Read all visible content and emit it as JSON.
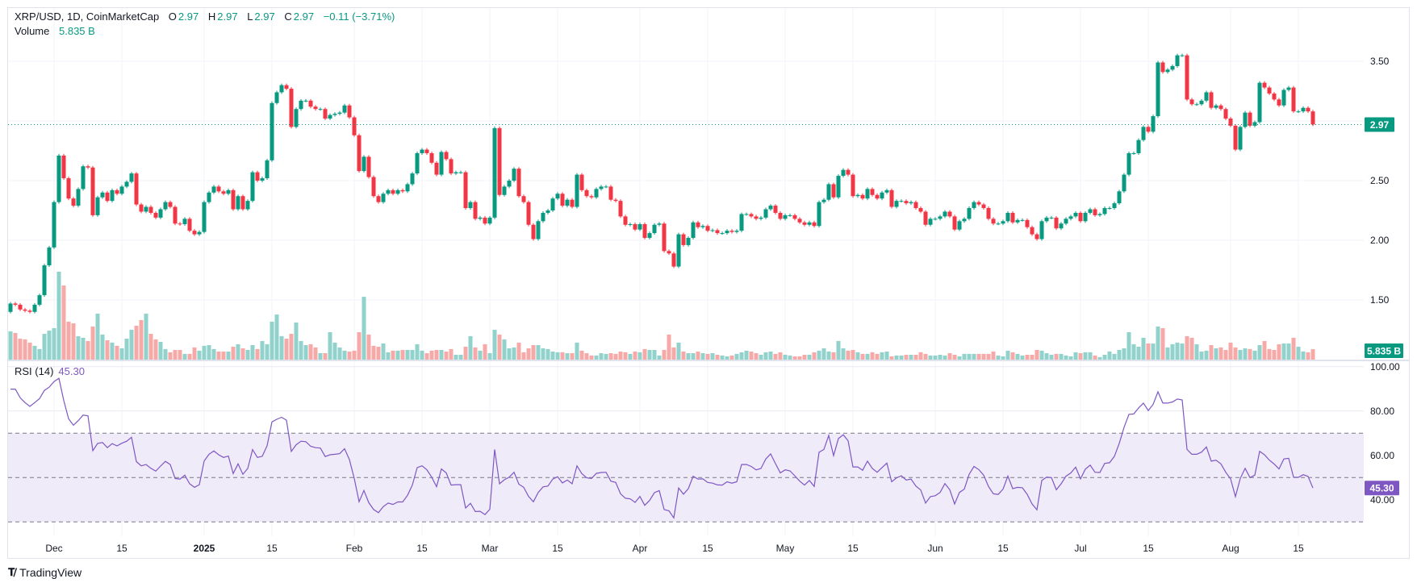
{
  "header": {
    "symbol": "XRP/USD, 1D, CoinMarketCap",
    "open_label": "O",
    "open": "2.97",
    "high_label": "H",
    "high": "2.97",
    "low_label": "L",
    "low": "2.97",
    "close_label": "C",
    "close": "2.97",
    "change": "−0.11 (−3.71%)",
    "volume_label": "Volume",
    "volume": "5.835 B"
  },
  "rsi_legend": {
    "label": "RSI (14)",
    "value": "45.30"
  },
  "price_badge": "2.97",
  "volume_badge": "5.835 B",
  "rsi_badge": "45.30",
  "brand": "TradingView",
  "colors": {
    "up": "#089981",
    "down": "#f23645",
    "volume_up": "#92d2cc",
    "volume_down": "#f7a9a7",
    "rsi": "#7e57c2",
    "rsi_band": "#f0ebf9"
  },
  "chart_data": {
    "type": "candlestick",
    "timeframe": "1D",
    "price_axis": {
      "ticks": [
        "3.50",
        "3.00",
        "2.50",
        "2.00",
        "1.50"
      ],
      "tick_values": [
        3.5,
        3.0,
        2.5,
        2.0,
        1.5
      ],
      "range": [
        1.2,
        3.9
      ]
    },
    "time_axis": [
      {
        "label": "Dec",
        "date": "2024-12-01"
      },
      {
        "label": "15",
        "date": "2024-12-15"
      },
      {
        "label": "2025",
        "date": "2025-01-01",
        "bold": true
      },
      {
        "label": "15",
        "date": "2025-01-15"
      },
      {
        "label": "Feb",
        "date": "2025-02-01"
      },
      {
        "label": "15",
        "date": "2025-02-15"
      },
      {
        "label": "Mar",
        "date": "2025-03-01"
      },
      {
        "label": "15",
        "date": "2025-03-15"
      },
      {
        "label": "Apr",
        "date": "2025-04-01"
      },
      {
        "label": "15",
        "date": "2025-04-15"
      },
      {
        "label": "May",
        "date": "2025-05-01"
      },
      {
        "label": "15",
        "date": "2025-05-15"
      },
      {
        "label": "Jun",
        "date": "2025-06-01"
      },
      {
        "label": "15",
        "date": "2025-06-15"
      },
      {
        "label": "Jul",
        "date": "2025-07-01"
      },
      {
        "label": "15",
        "date": "2025-07-15"
      },
      {
        "label": "Aug",
        "date": "2025-08-01"
      },
      {
        "label": "15",
        "date": "2025-08-15"
      }
    ],
    "last_price": 2.97,
    "first_open": 1.4,
    "close": [
      1.47,
      1.46,
      1.42,
      1.41,
      1.4,
      1.46,
      1.54,
      1.79,
      1.94,
      2.32,
      2.71,
      2.52,
      2.35,
      2.29,
      2.43,
      2.62,
      2.61,
      2.21,
      2.36,
      2.4,
      2.33,
      2.42,
      2.39,
      2.45,
      2.49,
      2.56,
      2.3,
      2.24,
      2.28,
      2.23,
      2.19,
      2.26,
      2.32,
      2.28,
      2.14,
      2.135,
      2.18,
      2.08,
      2.05,
      2.07,
      2.32,
      2.4,
      2.45,
      2.41,
      2.39,
      2.42,
      2.26,
      2.37,
      2.26,
      2.33,
      2.57,
      2.5,
      2.52,
      2.67,
      3.15,
      3.24,
      3.3,
      3.27,
      2.95,
      3.1,
      3.17,
      3.17,
      3.12,
      3.1,
      3.1,
      3.02,
      3.05,
      3.06,
      3.07,
      3.13,
      3.03,
      2.88,
      2.58,
      2.7,
      2.53,
      2.37,
      2.32,
      2.39,
      2.42,
      2.39,
      2.42,
      2.41,
      2.47,
      2.56,
      2.73,
      2.76,
      2.73,
      2.65,
      2.55,
      2.74,
      2.68,
      2.56,
      2.57,
      2.57,
      2.27,
      2.32,
      2.18,
      2.19,
      2.14,
      2.19,
      2.94,
      2.38,
      2.45,
      2.5,
      2.6,
      2.37,
      2.32,
      2.13,
      2.01,
      2.16,
      2.23,
      2.25,
      2.35,
      2.39,
      2.29,
      2.34,
      2.28,
      2.55,
      2.42,
      2.37,
      2.36,
      2.43,
      2.45,
      2.45,
      2.34,
      2.33,
      2.2,
      2.13,
      2.135,
      2.09,
      2.135,
      2.02,
      2.06,
      2.13,
      2.14,
      1.91,
      1.89,
      1.78,
      2.05,
      1.96,
      2.02,
      2.15,
      2.11,
      2.12,
      2.08,
      2.085,
      2.06,
      2.06,
      2.08,
      2.07,
      2.08,
      2.22,
      2.22,
      2.2,
      2.18,
      2.19,
      2.26,
      2.29,
      2.23,
      2.18,
      2.21,
      2.21,
      2.18,
      2.15,
      2.13,
      2.15,
      2.12,
      2.32,
      2.34,
      2.47,
      2.36,
      2.54,
      2.59,
      2.55,
      2.37,
      2.38,
      2.35,
      2.43,
      2.38,
      2.35,
      2.4,
      2.42,
      2.28,
      2.33,
      2.33,
      2.31,
      2.32,
      2.27,
      2.24,
      2.13,
      2.18,
      2.18,
      2.2,
      2.24,
      2.2,
      2.09,
      2.16,
      2.18,
      2.27,
      2.32,
      2.3,
      2.27,
      2.18,
      2.14,
      2.14,
      2.16,
      2.23,
      2.15,
      2.17,
      2.17,
      2.11,
      2.05,
      2.01,
      2.16,
      2.19,
      2.19,
      2.1,
      2.14,
      2.18,
      2.2,
      2.23,
      2.16,
      2.23,
      2.26,
      2.21,
      2.22,
      2.27,
      2.27,
      2.31,
      2.41,
      2.55,
      2.73,
      2.73,
      2.84,
      2.95,
      2.91,
      3.04,
      3.49,
      3.41,
      3.43,
      3.46,
      3.55,
      3.55,
      3.18,
      3.14,
      3.14,
      3.17,
      3.24,
      3.11,
      3.13,
      3.1,
      3.02,
      2.96,
      2.76,
      2.95,
      3.07,
      2.96,
      2.99,
      3.32,
      3.28,
      3.23,
      3.18,
      3.13,
      3.26,
      3.28,
      3.08,
      3.08,
      3.11,
      3.08,
      2.97
    ],
    "volume_billions": [
      15.8,
      14.9,
      11.7,
      11.3,
      9.5,
      7.7,
      5.9,
      14.4,
      16.2,
      17.6,
      49.1,
      41.4,
      21.2,
      20.3,
      13.1,
      12.2,
      10.4,
      18.5,
      25.7,
      14.0,
      10.8,
      9.5,
      7.7,
      6.3,
      11.7,
      16.7,
      18.9,
      22.1,
      25.7,
      14.4,
      11.3,
      9.9,
      5.9,
      4.1,
      5.4,
      5.4,
      3.2,
      3.2,
      6.8,
      5.0,
      7.7,
      8.1,
      5.9,
      4.5,
      4.5,
      4.5,
      7.2,
      8.6,
      6.3,
      5.4,
      8.1,
      5.9,
      10.4,
      8.6,
      21.2,
      25.2,
      13.1,
      11.7,
      14.4,
      20.7,
      10.4,
      8.1,
      8.6,
      6.8,
      3.6,
      3.6,
      15.3,
      9.5,
      6.8,
      5.0,
      4.5,
      5.0,
      15.3,
      35.1,
      14.0,
      7.7,
      7.2,
      9.0,
      4.1,
      5.0,
      5.0,
      5.4,
      5.4,
      5.4,
      8.6,
      5.0,
      3.6,
      5.0,
      5.4,
      5.4,
      4.5,
      5.9,
      2.7,
      2.7,
      7.2,
      13.1,
      6.8,
      5.0,
      8.6,
      3.6,
      16.7,
      14.0,
      11.3,
      6.3,
      6.8,
      9.5,
      4.1,
      6.3,
      8.1,
      8.1,
      6.3,
      5.9,
      4.5,
      4.1,
      4.1,
      3.6,
      3.6,
      9.5,
      5.0,
      3.6,
      2.3,
      2.3,
      3.6,
      3.2,
      3.6,
      3.2,
      4.5,
      4.1,
      3.2,
      4.5,
      4.1,
      5.9,
      5.4,
      5.4,
      2.3,
      5.4,
      14.0,
      6.8,
      9.5,
      4.5,
      3.6,
      3.6,
      4.5,
      3.6,
      3.2,
      3.6,
      2.7,
      2.3,
      1.8,
      2.3,
      3.2,
      4.1,
      5.0,
      4.5,
      3.6,
      2.7,
      4.1,
      4.5,
      3.2,
      4.1,
      2.7,
      2.3,
      1.8,
      1.8,
      2.7,
      2.7,
      4.1,
      5.0,
      6.3,
      4.5,
      4.1,
      10.4,
      6.3,
      5.0,
      5.4,
      4.1,
      3.2,
      3.2,
      4.1,
      3.2,
      4.1,
      4.5,
      1.8,
      2.3,
      2.3,
      2.7,
      2.7,
      2.7,
      4.1,
      3.2,
      2.3,
      2.3,
      2.7,
      2.3,
      3.6,
      2.7,
      1.8,
      3.2,
      3.2,
      3.2,
      3.2,
      3.2,
      3.2,
      4.5,
      2.3,
      1.8,
      5.0,
      4.1,
      3.2,
      2.3,
      2.7,
      2.7,
      5.4,
      5.0,
      3.6,
      2.7,
      3.2,
      3.2,
      2.3,
      1.8,
      4.1,
      3.6,
      4.1,
      4.1,
      2.3,
      1.4,
      2.7,
      4.5,
      3.2,
      5.4,
      6.3,
      15.3,
      8.6,
      7.2,
      12.2,
      9.0,
      9.0,
      18.5,
      17.6,
      6.8,
      8.6,
      9.5,
      9.0,
      13.1,
      12.2,
      8.6,
      4.5,
      5.0,
      8.1,
      6.3,
      6.8,
      5.4,
      9.5,
      6.8,
      5.4,
      6.3,
      5.9,
      5.0,
      8.1,
      10.4,
      5.9,
      5.4,
      8.6,
      9.0,
      9.0,
      12.2,
      7.2,
      4.5,
      4.1,
      5.835
    ],
    "rsi": {
      "period": 14,
      "axis_ticks": [
        "100.00",
        "80.00",
        "60.00",
        "40.00"
      ],
      "axis_values": [
        100,
        80,
        60,
        40
      ],
      "bands": [
        70,
        50,
        30
      ],
      "values": [
        89.9,
        89.9,
        86.0,
        83.8,
        82.1,
        83.8,
        85.6,
        89.3,
        90.8,
        93.3,
        94.8,
        84.8,
        76.5,
        73.6,
        75.7,
        78.2,
        77.9,
        62.1,
        65.4,
        65.8,
        63.5,
        65.3,
        64.3,
        65.5,
        66.4,
        68.2,
        57.2,
        55.3,
        55.9,
        54.2,
        52.9,
        55.2,
        57.3,
        55.9,
        49.6,
        49.3,
        51.1,
        47.2,
        45.6,
        46.8,
        57.5,
        60.5,
        62.0,
        60.3,
        59.1,
        59.7,
        51.8,
        56.2,
        51.5,
        54.1,
        62.6,
        59.1,
        59.6,
        64.4,
        75.1,
        76.3,
        77.2,
        75.9,
        61.8,
        64.8,
        66.4,
        66.2,
        64.1,
        63.5,
        63.3,
        59.5,
        60.3,
        60.5,
        60.8,
        63.0,
        58.1,
        49.6,
        39.1,
        44.2,
        38.7,
        35.6,
        34.2,
        36.9,
        38.5,
        37.9,
        39.0,
        39.0,
        42.0,
        46.6,
        54.5,
        55.3,
        53.5,
        50.2,
        45.9,
        53.9,
        52.1,
        46.6,
        46.8,
        46.8,
        36.3,
        38.4,
        34.7,
        34.8,
        33.3,
        35.7,
        62.7,
        47.2,
        49.0,
        50.2,
        52.4,
        47.0,
        45.6,
        41.5,
        39.1,
        43.3,
        45.8,
        46.2,
        49.3,
        50.4,
        47.6,
        48.9,
        47.2,
        55.3,
        51.8,
        49.9,
        49.6,
        51.9,
        52.3,
        52.4,
        48.4,
        47.8,
        42.7,
        40.7,
        40.4,
        38.8,
        41.5,
        37.5,
        39.7,
        43.2,
        44.1,
        35.6,
        35.0,
        31.8,
        45.3,
        42.5,
        45.0,
        50.6,
        49.3,
        49.4,
        47.8,
        47.5,
        46.7,
        46.6,
        48.1,
        47.5,
        48.1,
        55.9,
        55.9,
        55.0,
        53.5,
        54.1,
        58.4,
        60.7,
        56.3,
        52.1,
        53.5,
        53.0,
        50.8,
        48.4,
        46.6,
        48.7,
        46.0,
        61.4,
        62.7,
        69.0,
        59.9,
        67.6,
        69.3,
        66.6,
        54.8,
        54.8,
        53.3,
        57.4,
        54.1,
        52.4,
        54.5,
        56.5,
        48.1,
        49.9,
        50.8,
        48.9,
        49.3,
        46.2,
        44.4,
        38.5,
        41.4,
        41.8,
        43.3,
        47.3,
        44.5,
        38.1,
        43.3,
        44.8,
        51.5,
        55.0,
        53.6,
        51.1,
        46.0,
        42.7,
        42.4,
        44.8,
        50.7,
        45.0,
        45.6,
        45.4,
        42.4,
        38.1,
        35.5,
        48.7,
        50.2,
        50.0,
        44.5,
        47.2,
        50.6,
        52.1,
        54.7,
        49.4,
        53.8,
        55.6,
        52.4,
        52.3,
        56.4,
        56.7,
        59.6,
        65.4,
        72.7,
        78.5,
        78.7,
        81.4,
        83.6,
        80.2,
        83.0,
        88.7,
        83.6,
        83.6,
        84.1,
        85.4,
        85.0,
        62.7,
        60.5,
        60.5,
        61.5,
        63.8,
        57.4,
        57.8,
        56.2,
        52.4,
        49.4,
        41.4,
        49.6,
        54.2,
        50.0,
        51.1,
        61.8,
        60.3,
        57.9,
        56.1,
        53.9,
        58.4,
        58.7,
        50.2,
        50.1,
        51.3,
        50.5,
        45.3
      ]
    }
  }
}
